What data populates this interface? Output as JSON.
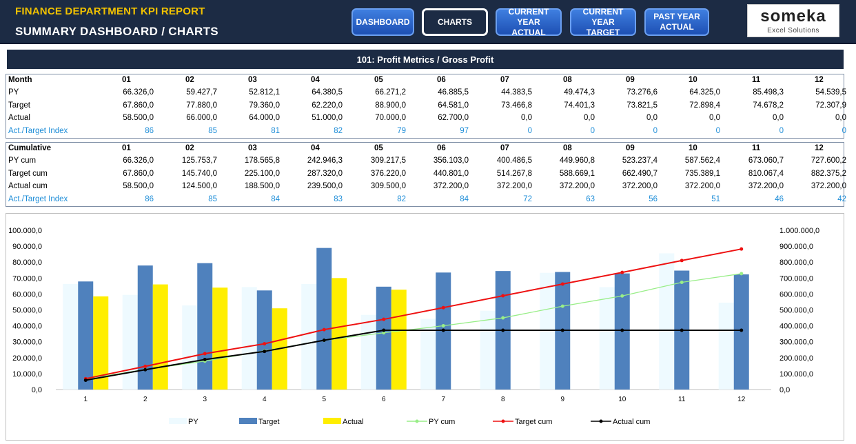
{
  "header": {
    "title": "FINANCE DEPARTMENT KPI REPORT",
    "subtitle": "SUMMARY DASHBOARD / CHARTS",
    "nav": [
      {
        "line1": "DASHBOARD",
        "line2": ""
      },
      {
        "line1": "CHARTS",
        "line2": ""
      },
      {
        "line1": "CURRENT YEAR",
        "line2": "ACTUAL"
      },
      {
        "line1": "CURRENT YEAR",
        "line2": "TARGET"
      },
      {
        "line1": "PAST YEAR",
        "line2": "ACTUAL"
      }
    ],
    "logo_main": "someka",
    "logo_sub": "Excel Solutions"
  },
  "section_title": "101: Profit Metrics / Gross Profit",
  "monthly_table": {
    "header": "Month",
    "months": [
      "01",
      "02",
      "03",
      "04",
      "05",
      "06",
      "07",
      "08",
      "09",
      "10",
      "11",
      "12"
    ],
    "rows": [
      {
        "label": "PY",
        "values": [
          "66.326,0",
          "59.427,7",
          "52.812,1",
          "64.380,5",
          "66.271,2",
          "46.885,5",
          "44.383,5",
          "49.474,3",
          "73.276,6",
          "64.325,0",
          "85.498,3",
          "54.539,5"
        ]
      },
      {
        "label": "Target",
        "values": [
          "67.860,0",
          "77.880,0",
          "79.360,0",
          "62.220,0",
          "88.900,0",
          "64.581,0",
          "73.466,8",
          "74.401,3",
          "73.821,5",
          "72.898,4",
          "74.678,2",
          "72.307,9"
        ]
      },
      {
        "label": "Actual",
        "values": [
          "58.500,0",
          "66.000,0",
          "64.000,0",
          "51.000,0",
          "70.000,0",
          "62.700,0",
          "0,0",
          "0,0",
          "0,0",
          "0,0",
          "0,0",
          "0,0"
        ]
      },
      {
        "label": "Act./Target Index",
        "values": [
          "86",
          "85",
          "81",
          "82",
          "79",
          "97",
          "0",
          "0",
          "0",
          "0",
          "0",
          "0"
        ]
      }
    ]
  },
  "cumulative_table": {
    "header": "Cumulative",
    "months": [
      "01",
      "02",
      "03",
      "04",
      "05",
      "06",
      "07",
      "08",
      "09",
      "10",
      "11",
      "12"
    ],
    "rows": [
      {
        "label": "PY cum",
        "values": [
          "66.326,0",
          "125.753,7",
          "178.565,8",
          "242.946,3",
          "309.217,5",
          "356.103,0",
          "400.486,5",
          "449.960,8",
          "523.237,4",
          "587.562,4",
          "673.060,7",
          "727.600,2"
        ]
      },
      {
        "label": "Target cum",
        "values": [
          "67.860,0",
          "145.740,0",
          "225.100,0",
          "287.320,0",
          "376.220,0",
          "440.801,0",
          "514.267,8",
          "588.669,1",
          "662.490,7",
          "735.389,1",
          "810.067,4",
          "882.375,2"
        ]
      },
      {
        "label": "Actual cum",
        "values": [
          "58.500,0",
          "124.500,0",
          "188.500,0",
          "239.500,0",
          "309.500,0",
          "372.200,0",
          "372.200,0",
          "372.200,0",
          "372.200,0",
          "372.200,0",
          "372.200,0",
          "372.200,0"
        ]
      },
      {
        "label": "Act./Target Index",
        "values": [
          "86",
          "85",
          "84",
          "83",
          "82",
          "84",
          "72",
          "63",
          "56",
          "51",
          "46",
          "42"
        ]
      }
    ]
  },
  "chart_data": {
    "type": "bar",
    "categories": [
      "1",
      "2",
      "3",
      "4",
      "5",
      "6",
      "7",
      "8",
      "9",
      "10",
      "11",
      "12"
    ],
    "series": [
      {
        "name": "PY",
        "kind": "bar",
        "axis": "left",
        "color": "#eefaff",
        "values": [
          66326.0,
          59427.7,
          52812.1,
          64380.5,
          66271.2,
          46885.5,
          44383.5,
          49474.3,
          73276.6,
          64325.0,
          85498.3,
          54539.5
        ]
      },
      {
        "name": "Target",
        "kind": "bar",
        "axis": "left",
        "color": "#4f81bd",
        "values": [
          67860.0,
          77880.0,
          79360.0,
          62220.0,
          88900.0,
          64581.0,
          73466.8,
          74401.3,
          73821.5,
          72898.4,
          74678.2,
          72307.9
        ]
      },
      {
        "name": "Actual",
        "kind": "bar",
        "axis": "left",
        "color": "#ffee00",
        "values": [
          58500.0,
          66000.0,
          64000.0,
          51000.0,
          70000.0,
          62700.0,
          0,
          0,
          0,
          0,
          0,
          0
        ]
      },
      {
        "name": "PY cum",
        "kind": "line",
        "axis": "right",
        "color": "#99ee88",
        "values": [
          66326.0,
          125753.7,
          178565.8,
          242946.3,
          309217.5,
          356103.0,
          400486.5,
          449960.8,
          523237.4,
          587562.4,
          673060.7,
          727600.2
        ]
      },
      {
        "name": "Target cum",
        "kind": "line",
        "axis": "right",
        "color": "#ee1111",
        "values": [
          67860.0,
          145740.0,
          225100.0,
          287320.0,
          376220.0,
          440801.0,
          514267.8,
          588669.1,
          662490.7,
          735389.1,
          810067.4,
          882375.2
        ]
      },
      {
        "name": "Actual cum",
        "kind": "line",
        "axis": "right",
        "color": "#000000",
        "values": [
          58500.0,
          124500.0,
          188500.0,
          239500.0,
          309500.0,
          372200.0,
          372200.0,
          372200.0,
          372200.0,
          372200.0,
          372200.0,
          372200.0
        ]
      }
    ],
    "ylim": [
      0,
      100000
    ],
    "y2lim": [
      0,
      1000000
    ],
    "y_ticks": [
      "0,0",
      "10.000,0",
      "20.000,0",
      "30.000,0",
      "40.000,0",
      "50.000,0",
      "60.000,0",
      "70.000,0",
      "80.000,0",
      "90.000,0",
      "100.000,0"
    ],
    "y2_ticks": [
      "0,0",
      "100.000,0",
      "200.000,0",
      "300.000,0",
      "400.000,0",
      "500.000,0",
      "600.000,0",
      "700.000,0",
      "800.000,0",
      "900.000,0",
      "1.000.000,0"
    ],
    "grid": false,
    "legend": "bottom"
  }
}
